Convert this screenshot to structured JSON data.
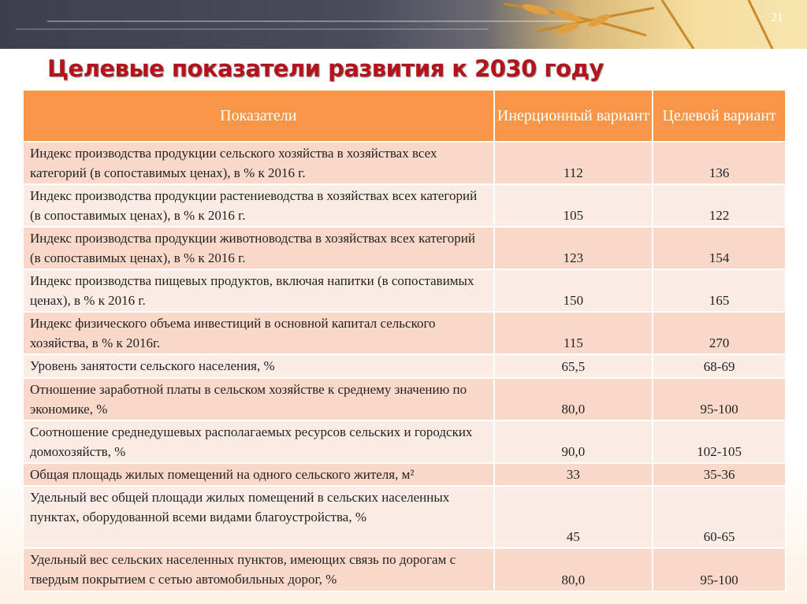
{
  "slide_number": "21",
  "title": "Целевые показатели развития к 2030 году",
  "table": {
    "headers": [
      "Показатели",
      "Инерционный вариант",
      "Целевой вариант"
    ],
    "rows": [
      {
        "indicator": "Индекс производства продукции сельского хозяйства в хозяйствах всех категорий (в сопоставимых ценах), в % к 2016 г.",
        "inertial": "112",
        "target": "136"
      },
      {
        "indicator": "Индекс производства продукции растениеводства в хозяйствах всех категорий (в сопоставимых ценах), в % к 2016 г.",
        "inertial": "105",
        "target": "122"
      },
      {
        "indicator": "Индекс производства продукции животноводства в хозяйствах всех категорий (в сопоставимых ценах), в % к 2016 г.",
        "inertial": "123",
        "target": "154"
      },
      {
        "indicator": "Индекс производства пищевых продуктов, включая напитки (в сопоставимых ценах), в % к 2016 г.",
        "inertial": "150",
        "target": "165"
      },
      {
        "indicator": "Индекс физического объема инвестиций в основной капитал сельского хозяйства, в % к 2016г.",
        "inertial": "115",
        "target": "270"
      },
      {
        "indicator": "Уровень занятости сельского населения, %",
        "inertial": "65,5",
        "target": "68-69"
      },
      {
        "indicator": "Отношение заработной платы в сельском хозяйстве к среднему значению по экономике, %",
        "inertial": "80,0",
        "target": "95-100"
      },
      {
        "indicator": "Соотношение среднедушевых располагаемых ресурсов сельских и городских домохозяйств, %",
        "inertial": "90,0",
        "target": "102-105"
      },
      {
        "indicator": "Общая площадь жилых помещений на одного сельского жителя, м²",
        "inertial": "33",
        "target": "35-36"
      },
      {
        "indicator": "Удельный вес общей площади жилых помещений в сельских населенных пунктах, оборудованной всеми видами благоустройства, %",
        "inertial": "45",
        "target": "60-65"
      },
      {
        "indicator": "Удельный вес сельских населенных пунктов, имеющих связь по дорогам с твердым покрытием с сетью автомобильных дорог, %",
        "inertial": "80,0",
        "target": "95-100"
      }
    ]
  }
}
